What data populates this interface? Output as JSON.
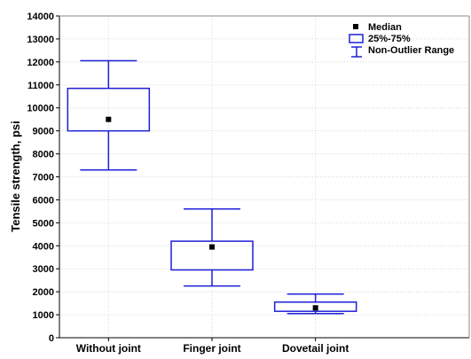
{
  "colors": {
    "box": "#1f1fd6",
    "median": "#000000",
    "grid": "#d6d6d6",
    "axis": "#000000"
  },
  "chart_data": {
    "type": "box",
    "title": "",
    "xlabel": "",
    "ylabel": "Tensile strength, psi",
    "ylim": [
      0,
      14000
    ],
    "yticks": [
      0,
      1000,
      2000,
      3000,
      4000,
      5000,
      6000,
      7000,
      8000,
      9000,
      10000,
      11000,
      12000,
      13000,
      14000
    ],
    "grid": true,
    "legend_position": "top-right",
    "legend": {
      "median": "Median",
      "box": "25%-75%",
      "whisker": "Non-Outlier Range"
    },
    "categories": [
      "Without joint",
      "Finger joint",
      "Dovetail joint"
    ],
    "median": [
      9500,
      3950,
      1300
    ],
    "q1": [
      9000,
      2950,
      1150
    ],
    "q3": [
      10850,
      4200,
      1550
    ],
    "min": [
      7300,
      2250,
      1050
    ],
    "max": [
      12050,
      5600,
      1900
    ]
  }
}
